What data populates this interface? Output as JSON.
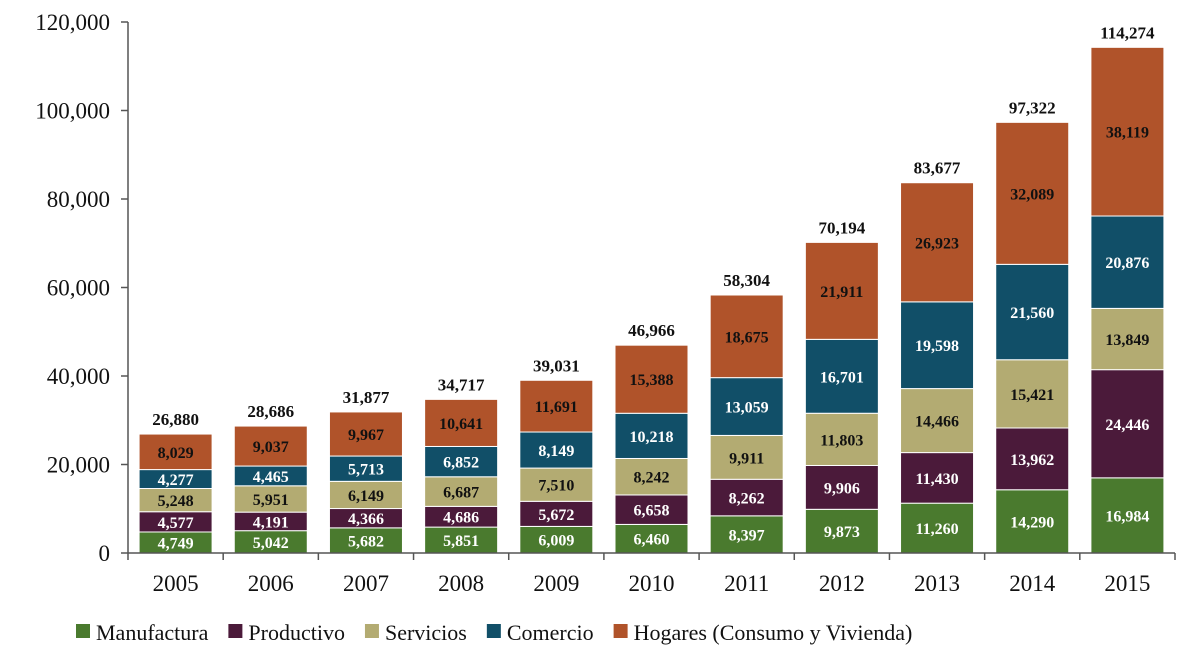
{
  "chart_data": {
    "type": "bar",
    "stacked": true,
    "categories": [
      "2005",
      "2006",
      "2007",
      "2008",
      "2009",
      "2010",
      "2011",
      "2012",
      "2013",
      "2014",
      "2015"
    ],
    "series": [
      {
        "name": "Manufactura",
        "color": "#4a7a2e",
        "label_color": "#ffffff",
        "values": [
          4749,
          5042,
          5682,
          5851,
          6009,
          6460,
          8397,
          9873,
          11260,
          14290,
          16984
        ],
        "labels": [
          "4,749",
          "5,042",
          "5,682",
          "5,851",
          "6,009",
          "6,460",
          "8,397",
          "9,873",
          "11,260",
          "14,290",
          "16,984"
        ]
      },
      {
        "name": "Productivo",
        "color": "#4b1a3a",
        "label_color": "#ffffff",
        "values": [
          4577,
          4191,
          4366,
          4686,
          5672,
          6658,
          8262,
          9906,
          11430,
          13962,
          24446
        ],
        "labels": [
          "4,577",
          "4,191",
          "4,366",
          "4,686",
          "5,672",
          "6,658",
          "8,262",
          "9,906",
          "11,430",
          "13,962",
          "24,446"
        ]
      },
      {
        "name": "Servicios",
        "color": "#b3ab72",
        "label_color": "#111111",
        "values": [
          5248,
          5951,
          6149,
          6687,
          7510,
          8242,
          9911,
          11803,
          14466,
          15421,
          13849
        ],
        "labels": [
          "5,248",
          "5,951",
          "6,149",
          "6,687",
          "7,510",
          "8,242",
          "9,911",
          "11,803",
          "14,466",
          "15,421",
          "13,849"
        ]
      },
      {
        "name": "Comercio",
        "color": "#114f68",
        "label_color": "#ffffff",
        "values": [
          4277,
          4465,
          5713,
          6852,
          8149,
          10218,
          13059,
          16701,
          19598,
          21560,
          20876
        ],
        "labels": [
          "4,277",
          "4,465",
          "5,713",
          "6,852",
          "8,149",
          "10,218",
          "13,059",
          "16,701",
          "19,598",
          "21,560",
          "20,876"
        ]
      },
      {
        "name": "Hogares (Consumo y Vivienda)",
        "color": "#b0532a",
        "label_color": "#111111",
        "values": [
          8029,
          9037,
          9967,
          10641,
          11691,
          15388,
          18675,
          21911,
          26923,
          32089,
          38119
        ],
        "labels": [
          "8,029",
          "9,037",
          "9,967",
          "10,641",
          "11,691",
          "15,388",
          "18,675",
          "21,911",
          "26,923",
          "32,089",
          "38,119"
        ]
      }
    ],
    "totals": [
      26880,
      28686,
      31877,
      34717,
      39031,
      46966,
      58304,
      70194,
      83677,
      97322,
      114274
    ],
    "total_labels": [
      "26,880",
      "28,686",
      "31,877",
      "34,717",
      "39,031",
      "46,966",
      "58,304",
      "70,194",
      "83,677",
      "97,322",
      "114,274"
    ],
    "ylim": [
      0,
      120000
    ],
    "yticks": [
      0,
      20000,
      40000,
      60000,
      80000,
      100000,
      120000
    ],
    "ytick_labels": [
      "0",
      "20,000",
      "40,000",
      "60,000",
      "80,000",
      "100,000",
      "120,000"
    ],
    "grid": false,
    "legend_position": "bottom"
  }
}
